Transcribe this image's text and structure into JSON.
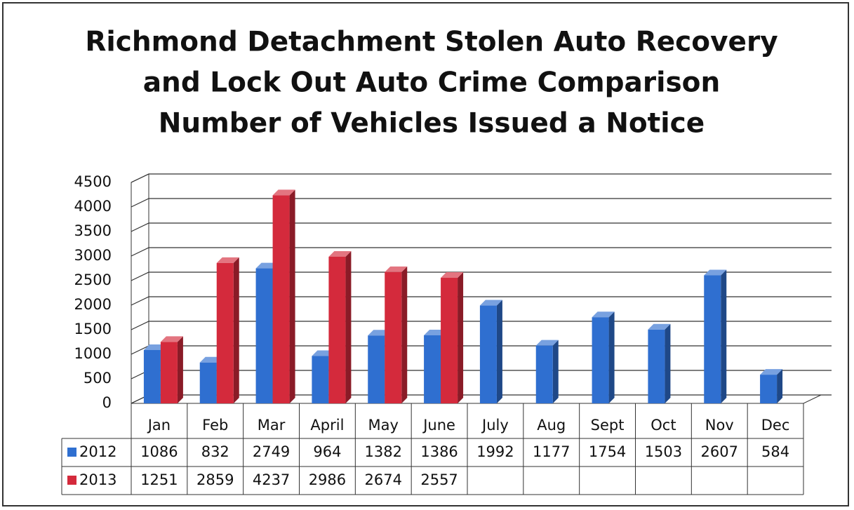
{
  "chart_data": {
    "type": "bar",
    "title": [
      "Richmond Detachment Stolen Auto Recovery",
      "and Lock Out Auto Crime Comparison",
      "Number of Vehicles Issued a Notice"
    ],
    "categories": [
      "Jan",
      "Feb",
      "Mar",
      "April",
      "May",
      "June",
      "July",
      "Aug",
      "Sept",
      "Oct",
      "Nov",
      "Dec"
    ],
    "series": [
      {
        "name": "2012",
        "color": "#2f6fd0",
        "values": [
          1086,
          832,
          2749,
          964,
          1382,
          1386,
          1992,
          1177,
          1754,
          1503,
          2607,
          584
        ]
      },
      {
        "name": "2013",
        "color": "#d42a3c",
        "values": [
          1251,
          2859,
          4237,
          2986,
          2674,
          2557,
          null,
          null,
          null,
          null,
          null,
          null
        ]
      }
    ],
    "ylim": [
      0,
      4500
    ],
    "yticks": [
      0,
      500,
      1000,
      1500,
      2000,
      2500,
      3000,
      3500,
      4000,
      4500
    ],
    "grid": true
  }
}
